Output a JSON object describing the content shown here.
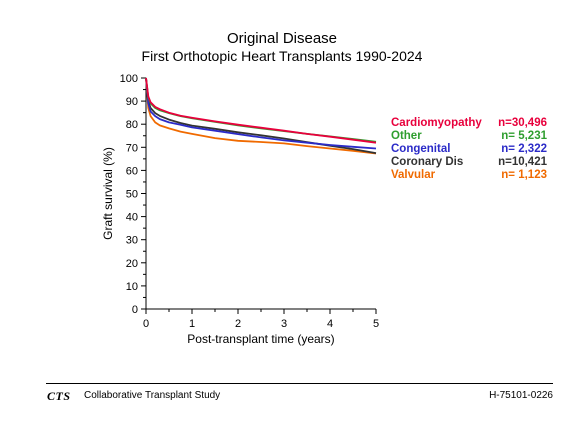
{
  "chart_data": {
    "type": "line",
    "title": "Original Disease",
    "subtitle": "First Orthotopic Heart Transplants 1990-2024",
    "xlabel": "Post-transplant time (years)",
    "ylabel": "Graft survival (%)",
    "xlim": [
      0,
      5
    ],
    "ylim": [
      0,
      100
    ],
    "xticks": [
      0,
      1,
      2,
      3,
      4,
      5
    ],
    "yticks": [
      0,
      10,
      20,
      30,
      40,
      50,
      60,
      70,
      80,
      90,
      100
    ],
    "grid": false,
    "legend_placement": "right",
    "x": [
      0,
      0.05,
      0.1,
      0.2,
      0.3,
      0.5,
      0.75,
      1,
      1.5,
      2,
      2.5,
      3,
      3.5,
      4,
      4.5,
      5
    ],
    "series": [
      {
        "name": "Cardiomyopathy",
        "count": "n=30,496",
        "color": "#e8003c",
        "values": [
          100,
          92,
          89.5,
          87.5,
          86.5,
          85,
          83.7,
          82.8,
          81.2,
          79.8,
          78.5,
          77.2,
          75.8,
          74.6,
          73.3,
          72
        ]
      },
      {
        "name": "Other",
        "count": "n= 5,231",
        "color": "#2f9e2f",
        "values": [
          100,
          91.5,
          89,
          87,
          86,
          84.8,
          83.5,
          82.6,
          81,
          79.5,
          78.2,
          77,
          75.8,
          74.7,
          73.6,
          72.4
        ]
      },
      {
        "name": "Congenital",
        "count": "n= 2,322",
        "color": "#2b2bc8",
        "values": [
          100,
          89,
          85.5,
          83.5,
          82.2,
          80.8,
          79.8,
          78.6,
          77.2,
          75.7,
          74.3,
          73,
          72,
          71,
          70.2,
          69.5
        ]
      },
      {
        "name": "Coronary Dis",
        "count": "n=10,421",
        "color": "#333333",
        "values": [
          100,
          90,
          87,
          84.8,
          83.6,
          82,
          80.5,
          79.4,
          78,
          76.5,
          75.2,
          73.8,
          72.2,
          70.7,
          69.2,
          67.5
        ]
      },
      {
        "name": "Valvular",
        "count": "n= 1,123",
        "color": "#f06a00",
        "values": [
          100,
          87,
          83.5,
          80.8,
          79.5,
          78.2,
          76.8,
          75.8,
          74,
          72.8,
          72.3,
          71.7,
          70.5,
          69.5,
          68.5,
          67.3
        ]
      }
    ]
  },
  "footer": {
    "logo": "CTS",
    "org_name": "Collaborative Transplant Study",
    "ref_code": "H-75101-0226"
  }
}
